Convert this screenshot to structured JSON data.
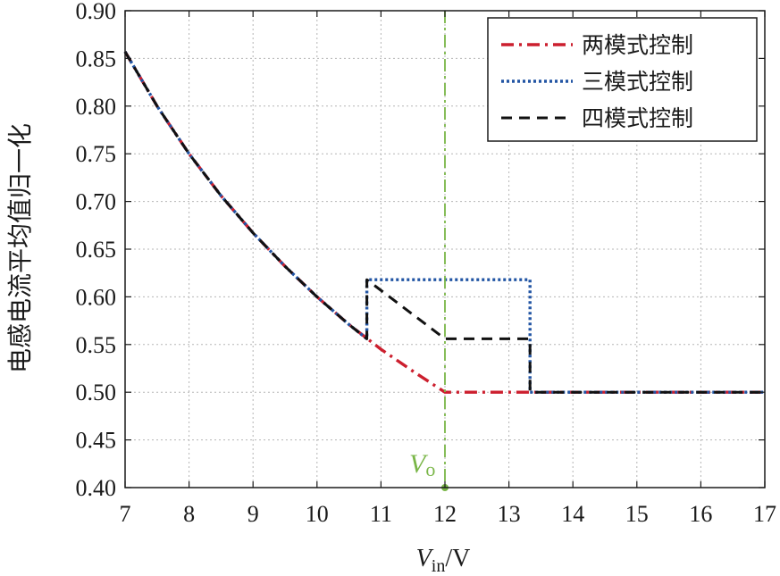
{
  "chart_data": {
    "type": "line",
    "ylabel": "电感电流平均值归一化",
    "xlabel": {
      "var": "V",
      "sub": "in",
      "unit": "/V"
    },
    "xlim": [
      7,
      17
    ],
    "ylim": [
      0.4,
      0.9
    ],
    "xticks": [
      "7",
      "8",
      "9",
      "10",
      "11",
      "12",
      "13",
      "14",
      "15",
      "16",
      "17"
    ],
    "yticks": [
      "0.40",
      "0.45",
      "0.50",
      "0.55",
      "0.60",
      "0.65",
      "0.70",
      "0.75",
      "0.80",
      "0.85",
      "0.90"
    ],
    "grid": true,
    "legend_position": "top-right",
    "annotation": {
      "var": "V",
      "sub": "o",
      "x": 12,
      "color": "#7ab648"
    },
    "series": [
      {
        "name": "两模式控制",
        "color": "#cc1f2e",
        "dash": "14,6,3,6",
        "points": [
          [
            7,
            0.857
          ],
          [
            7.5,
            0.8
          ],
          [
            8,
            0.75
          ],
          [
            8.5,
            0.706
          ],
          [
            9,
            0.667
          ],
          [
            9.5,
            0.632
          ],
          [
            10,
            0.6
          ],
          [
            10.5,
            0.571
          ],
          [
            11,
            0.545
          ],
          [
            11.5,
            0.522
          ],
          [
            12,
            0.5
          ],
          [
            17,
            0.5
          ]
        ]
      },
      {
        "name": "三模式控制",
        "color": "#2255a4",
        "dash": "3,3",
        "points": [
          [
            7,
            0.857
          ],
          [
            7.5,
            0.8
          ],
          [
            8,
            0.75
          ],
          [
            8.5,
            0.706
          ],
          [
            9,
            0.667
          ],
          [
            9.5,
            0.632
          ],
          [
            10,
            0.6
          ],
          [
            10.5,
            0.571
          ],
          [
            10.78,
            0.556
          ],
          [
            10.78,
            0.618
          ],
          [
            13.33,
            0.618
          ],
          [
            13.33,
            0.5
          ],
          [
            17,
            0.5
          ]
        ]
      },
      {
        "name": "四模式控制",
        "color": "#111111",
        "dash": "12,8",
        "points": [
          [
            7,
            0.857
          ],
          [
            7.5,
            0.8
          ],
          [
            8,
            0.75
          ],
          [
            8.5,
            0.706
          ],
          [
            9,
            0.667
          ],
          [
            9.5,
            0.632
          ],
          [
            10,
            0.6
          ],
          [
            10.5,
            0.571
          ],
          [
            10.78,
            0.556
          ],
          [
            10.78,
            0.618
          ],
          [
            12,
            0.556
          ],
          [
            13.33,
            0.556
          ],
          [
            13.33,
            0.5
          ],
          [
            17,
            0.5
          ]
        ]
      }
    ]
  }
}
